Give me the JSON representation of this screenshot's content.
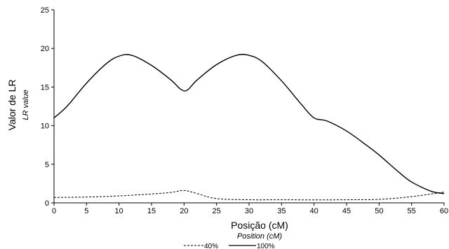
{
  "chart_data": {
    "type": "line",
    "xlabel": "Posição (cM)",
    "xlabel_sub": "Position  (cM)",
    "ylabel": "Valor de LR",
    "ylabel_sub": "LR  value",
    "xlim": [
      0,
      60
    ],
    "ylim": [
      0,
      25
    ],
    "xticks": [
      0,
      5,
      10,
      15,
      20,
      25,
      30,
      35,
      40,
      45,
      50,
      55,
      60
    ],
    "yticks": [
      0,
      5,
      10,
      15,
      20,
      25
    ],
    "grid": false,
    "legend_position": "bottom-center",
    "series": [
      {
        "name": "40%",
        "style": "dashed",
        "color": "#000000",
        "x": [
          0,
          5,
          10,
          15,
          18,
          20,
          22,
          25,
          30,
          35,
          40,
          45,
          50,
          55,
          60
        ],
        "y": [
          0.7,
          0.75,
          0.9,
          1.15,
          1.35,
          1.6,
          1.2,
          0.55,
          0.4,
          0.4,
          0.38,
          0.4,
          0.45,
          0.8,
          1.4
        ]
      },
      {
        "name": "100%",
        "style": "solid",
        "color": "#000000",
        "x": [
          0,
          2,
          5,
          8,
          10,
          12,
          15,
          18,
          19.5,
          20.5,
          22,
          25,
          28,
          30,
          32,
          35,
          38,
          40,
          42,
          45,
          48,
          50,
          53,
          55,
          58,
          60
        ],
        "y": [
          11,
          12.5,
          15.5,
          18.0,
          19.0,
          19.1,
          17.8,
          15.9,
          14.7,
          14.6,
          15.9,
          17.9,
          19.1,
          19.1,
          18.3,
          15.8,
          12.8,
          11.0,
          10.6,
          9.3,
          7.5,
          6.2,
          4.0,
          2.7,
          1.5,
          1.2
        ]
      }
    ]
  }
}
